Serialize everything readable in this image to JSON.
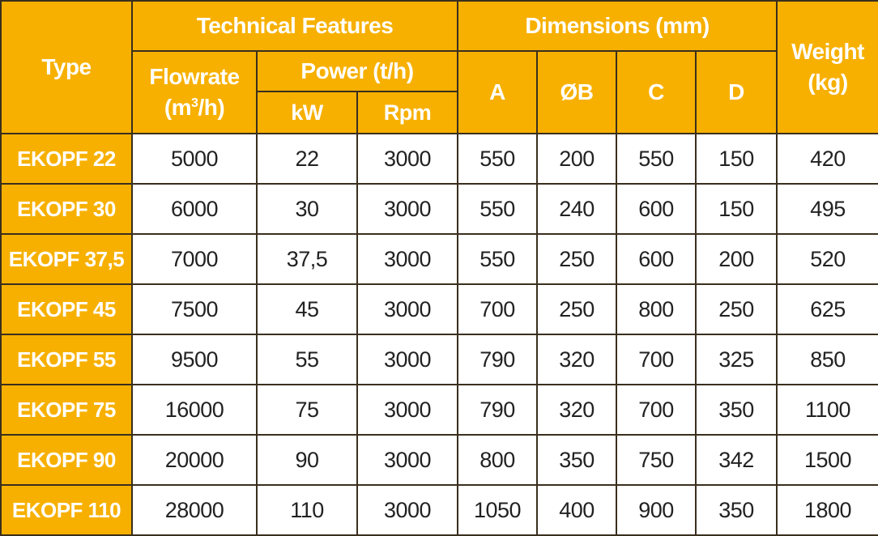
{
  "headers": {
    "type": "Type",
    "technical_features": "Technical Features",
    "dimensions": "Dimensions (mm)",
    "weight_line1": "Weight",
    "weight_line2": "(kg)",
    "flowrate_line1": "Flowrate",
    "flowrate_unit_prefix": "(m",
    "flowrate_unit_sup": "3",
    "flowrate_unit_suffix": "/h)",
    "power": "Power (t/h)",
    "kw": "kW",
    "rpm": "Rpm",
    "a": "A",
    "b": "ØB",
    "c": "C",
    "d": "D"
  },
  "rows": [
    {
      "type": "EKOPF 22",
      "flowrate": "5000",
      "kw": "22",
      "rpm": "3000",
      "a": "550",
      "b": "200",
      "c": "550",
      "d": "150",
      "weight": "420"
    },
    {
      "type": "EKOPF 30",
      "flowrate": "6000",
      "kw": "30",
      "rpm": "3000",
      "a": "550",
      "b": "240",
      "c": "600",
      "d": "150",
      "weight": "495"
    },
    {
      "type": "EKOPF 37,5",
      "flowrate": "7000",
      "kw": "37,5",
      "rpm": "3000",
      "a": "550",
      "b": "250",
      "c": "600",
      "d": "200",
      "weight": "520"
    },
    {
      "type": "EKOPF 45",
      "flowrate": "7500",
      "kw": "45",
      "rpm": "3000",
      "a": "700",
      "b": "250",
      "c": "800",
      "d": "250",
      "weight": "625"
    },
    {
      "type": "EKOPF 55",
      "flowrate": "9500",
      "kw": "55",
      "rpm": "3000",
      "a": "790",
      "b": "320",
      "c": "700",
      "d": "325",
      "weight": "850"
    },
    {
      "type": "EKOPF 75",
      "flowrate": "16000",
      "kw": "75",
      "rpm": "3000",
      "a": "790",
      "b": "320",
      "c": "700",
      "d": "350",
      "weight": "1100"
    },
    {
      "type": "EKOPF 90",
      "flowrate": "20000",
      "kw": "90",
      "rpm": "3000",
      "a": "800",
      "b": "350",
      "c": "750",
      "d": "342",
      "weight": "1500"
    },
    {
      "type": "EKOPF 110",
      "flowrate": "28000",
      "kw": "110",
      "rpm": "3000",
      "a": "1050",
      "b": "400",
      "c": "900",
      "d": "350",
      "weight": "1800"
    }
  ],
  "colors": {
    "header_bg": "#F7B000",
    "header_text": "#FFFFFF",
    "grid_line": "#3A2F1E",
    "cell_bg": "#FFFFFF",
    "cell_text": "#222222"
  }
}
